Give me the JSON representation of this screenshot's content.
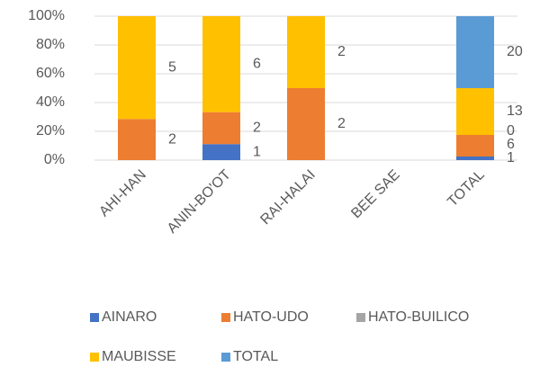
{
  "chart_data": {
    "type": "bar",
    "stacking": "percent",
    "categories": [
      "AHI-HAN",
      "ANIN-BO'OT",
      "RAI-HALAI",
      "BEE SAE",
      "TOTAL"
    ],
    "series": [
      {
        "name": "AINARO",
        "color": "#4472c4",
        "values": [
          null,
          1,
          null,
          null,
          1
        ]
      },
      {
        "name": "HATO-UDO",
        "color": "#ed7d31",
        "values": [
          2,
          2,
          2,
          null,
          6
        ]
      },
      {
        "name": "HATO-BUILICO",
        "color": "#a5a5a5",
        "values": [
          null,
          null,
          null,
          null,
          0
        ]
      },
      {
        "name": "MAUBISSE",
        "color": "#ffc000",
        "values": [
          5,
          6,
          2,
          null,
          13
        ]
      },
      {
        "name": "TOTAL",
        "color": "#5b9bd5",
        "values": [
          null,
          null,
          null,
          null,
          20
        ]
      }
    ],
    "ylim": [
      0,
      100
    ],
    "yticks": [
      {
        "value": 0,
        "label": "0%"
      },
      {
        "value": 20,
        "label": "20%"
      },
      {
        "value": 40,
        "label": "40%"
      },
      {
        "value": 60,
        "label": "60%"
      },
      {
        "value": 80,
        "label": "80%"
      },
      {
        "value": 100,
        "label": "100%"
      }
    ],
    "grid": true,
    "legend": "bottom"
  }
}
